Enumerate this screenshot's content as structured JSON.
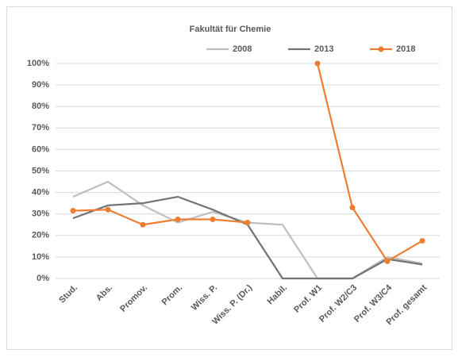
{
  "chart_data": {
    "type": "line",
    "title": "Fakultät für Chemie",
    "categories": [
      "Stud.",
      "Abs.",
      "Promov.",
      "Prom.",
      "Wiss. P.",
      "Wiss. P. (Dr.)",
      "Habil.",
      "Prof. W1",
      "Prof. W2/C3",
      "Prof. W3/C4",
      "Prof. gesamt"
    ],
    "series": [
      {
        "name": "2008",
        "color": "#bfbfbf",
        "markers": false,
        "values": [
          38,
          45,
          34,
          26,
          31,
          26,
          25,
          0,
          0,
          10,
          7
        ]
      },
      {
        "name": "2013",
        "color": "#737373",
        "markers": false,
        "values": [
          28,
          34,
          35,
          38,
          32,
          25,
          0,
          0,
          0,
          9,
          6.5
        ]
      },
      {
        "name": "2018",
        "color": "#ed7d31",
        "markers": true,
        "values": [
          31.5,
          32,
          25,
          27.5,
          27.5,
          26,
          null,
          100,
          33,
          8,
          17.5
        ]
      }
    ],
    "ylim": [
      0,
      100
    ],
    "yticks": [
      {
        "value": 0,
        "label": "0%"
      },
      {
        "value": 10,
        "label": "10%"
      },
      {
        "value": 20,
        "label": "20%"
      },
      {
        "value": 30,
        "label": "30%"
      },
      {
        "value": 40,
        "label": "40%"
      },
      {
        "value": 50,
        "label": "50%"
      },
      {
        "value": 60,
        "label": "60%"
      },
      {
        "value": 70,
        "label": "70%"
      },
      {
        "value": 80,
        "label": "80%"
      },
      {
        "value": 90,
        "label": "90%"
      },
      {
        "value": 100,
        "label": "100%"
      }
    ],
    "grid": true,
    "legend": "top-right"
  }
}
